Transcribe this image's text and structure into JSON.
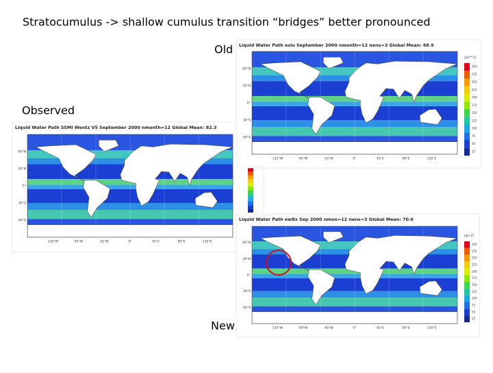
{
  "title": "Stratocumulus -> shallow cumulus transition “bridges” better pronounced",
  "lat_labels": [
    "60°N",
    "30°N",
    "0°",
    "30°S",
    "60°S"
  ],
  "lon_labels": [
    "135°W",
    "90°W",
    "45°W",
    "0°",
    "45°E",
    "90°E",
    "135°E"
  ],
  "panels": [
    {
      "label": "Observed",
      "map_title": "Liquid Water Path  SSMI Wentz V5  September 2000  nmonth=12  Global Mean: 82.3"
    },
    {
      "label": "Old",
      "map_title": "Liquid Water Path  esiu  September 2000  nmonth=12  nens=3  Global Mean: 68.9",
      "units": "[gm**-2]",
      "colorbar_labels": [
        "300",
        "275",
        "250",
        "225",
        "200",
        "175",
        "150",
        "125",
        "100",
        "75",
        "50",
        "25"
      ]
    },
    {
      "label": "New",
      "map_title": "Liquid Water Path  ew8x  Sep 2000  nmon=12  nens=3  Global Mean: 70.6",
      "units": "[gm-2]",
      "colorbar_labels": [
        "300",
        "275",
        "250",
        "225",
        "200",
        "175",
        "150",
        "125",
        "100",
        "75",
        "50",
        "25"
      ]
    }
  ]
}
